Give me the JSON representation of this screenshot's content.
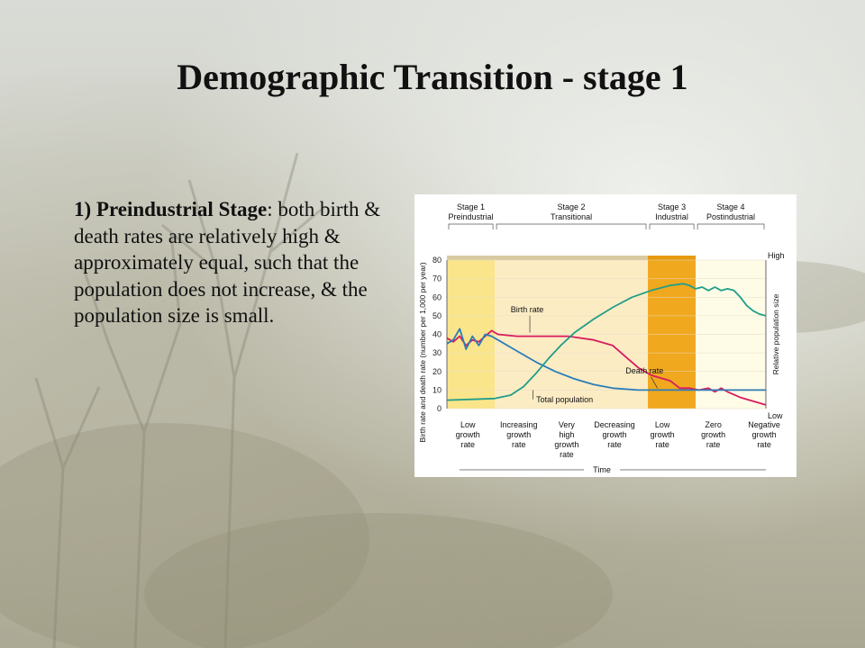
{
  "slide": {
    "title": "Demographic Transition - stage 1",
    "description": {
      "lead": "1) Preindustrial Stage",
      "colon": ":",
      "body": " both birth & death rates are relatively high & approximately equal, such that the population does not increase, & the population size is small."
    }
  },
  "colors": {
    "birth_rate": "#d81b60",
    "death_rate": "#2a7db8",
    "total_population": "#1f9e8a",
    "stage1_band": "#fbe58a",
    "stage2_band": "#fcecc4",
    "stage3_band": "#f0a81e",
    "stage4_band": "#fefbe6"
  },
  "chart_data": {
    "type": "line",
    "xlabel": "Time",
    "ylabel": "Birth rate and death rate (number per 1,000 per year)",
    "y2label": "Relative population size",
    "y2_high": "High",
    "y2_low": "Low",
    "ylim": [
      0,
      80
    ],
    "yticks": [
      0,
      10,
      20,
      30,
      40,
      50,
      60,
      70,
      80
    ],
    "xlim": [
      0,
      100
    ],
    "stages": [
      {
        "name": "Stage 1",
        "subtitle": "Preindustrial",
        "start": 0,
        "end": 15
      },
      {
        "name": "Stage 2",
        "subtitle": "Transitional",
        "start": 15,
        "end": 63
      },
      {
        "name": "Stage 3",
        "subtitle": "Industrial",
        "start": 63,
        "end": 78
      },
      {
        "name": "Stage 4",
        "subtitle": "Postindustrial",
        "start": 78,
        "end": 100
      }
    ],
    "growth_labels": [
      {
        "lines": [
          "Low",
          "growth",
          "rate"
        ],
        "x": 7
      },
      {
        "lines": [
          "Increasing",
          "growth",
          "rate"
        ],
        "x": 24
      },
      {
        "lines": [
          "Very",
          "high",
          "growth",
          "rate"
        ],
        "x": 40
      },
      {
        "lines": [
          "Decreasing",
          "growth",
          "rate"
        ],
        "x": 56
      },
      {
        "lines": [
          "Low",
          "growth",
          "rate"
        ],
        "x": 72
      },
      {
        "lines": [
          "Zero",
          "growth",
          "rate"
        ],
        "x": 89
      },
      {
        "lines": [
          "Negative",
          "growth",
          "rate"
        ],
        "x": 106
      }
    ],
    "series": [
      {
        "name": "Birth rate",
        "points": [
          [
            0,
            38
          ],
          [
            2,
            36
          ],
          [
            4,
            39
          ],
          [
            6,
            34
          ],
          [
            8,
            37
          ],
          [
            10,
            36
          ],
          [
            12,
            39
          ],
          [
            14,
            42
          ],
          [
            16,
            40
          ],
          [
            22,
            39
          ],
          [
            30,
            39
          ],
          [
            38,
            39
          ],
          [
            46,
            37
          ],
          [
            52,
            34
          ],
          [
            56,
            28
          ],
          [
            60,
            22
          ],
          [
            64,
            18
          ],
          [
            68,
            16
          ],
          [
            70,
            15
          ],
          [
            73,
            11
          ],
          [
            76,
            11
          ],
          [
            79,
            10
          ],
          [
            82,
            11
          ],
          [
            84,
            9
          ],
          [
            86,
            11
          ],
          [
            88,
            9
          ],
          [
            92,
            6
          ],
          [
            96,
            4
          ],
          [
            100,
            2
          ]
        ]
      },
      {
        "name": "Death rate",
        "points": [
          [
            0,
            35
          ],
          [
            2,
            37
          ],
          [
            4,
            43
          ],
          [
            6,
            32
          ],
          [
            8,
            39
          ],
          [
            10,
            34
          ],
          [
            12,
            40
          ],
          [
            14,
            39
          ],
          [
            16,
            37
          ],
          [
            22,
            31
          ],
          [
            28,
            25
          ],
          [
            34,
            20
          ],
          [
            40,
            16
          ],
          [
            46,
            13
          ],
          [
            52,
            11
          ],
          [
            60,
            10
          ],
          [
            70,
            10
          ],
          [
            80,
            10
          ],
          [
            90,
            10
          ],
          [
            100,
            10
          ]
        ]
      },
      {
        "name": "Total population",
        "points": [
          [
            0,
            5
          ],
          [
            8,
            5.5
          ],
          [
            15,
            6
          ],
          [
            20,
            8
          ],
          [
            24,
            13
          ],
          [
            28,
            21
          ],
          [
            32,
            30
          ],
          [
            36,
            38
          ],
          [
            40,
            45
          ],
          [
            46,
            53
          ],
          [
            52,
            60
          ],
          [
            58,
            66
          ],
          [
            64,
            70
          ],
          [
            70,
            73
          ],
          [
            74,
            74
          ],
          [
            76,
            73
          ],
          [
            78,
            71
          ],
          [
            80,
            72
          ],
          [
            82,
            70
          ],
          [
            84,
            72
          ],
          [
            86,
            70
          ],
          [
            88,
            71
          ],
          [
            90,
            70
          ],
          [
            92,
            66
          ],
          [
            94,
            61
          ],
          [
            96,
            58
          ],
          [
            98,
            56
          ],
          [
            100,
            55
          ]
        ]
      }
    ],
    "annotations": [
      "Birth rate",
      "Death rate",
      "Total population"
    ]
  }
}
